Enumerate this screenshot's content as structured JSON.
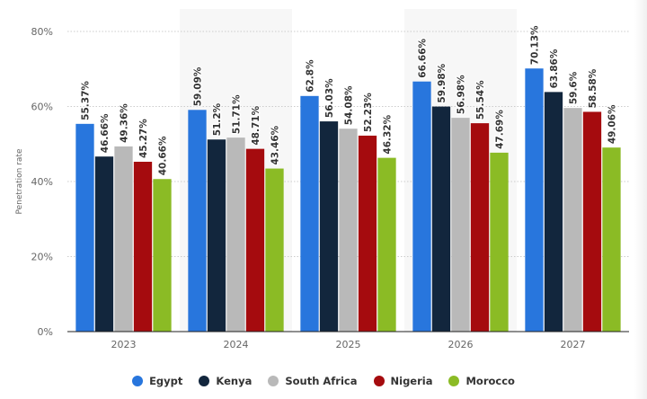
{
  "chart_data": {
    "type": "bar",
    "title": "",
    "xlabel": "",
    "ylabel": "Penetration rate",
    "ylim": [
      0,
      80
    ],
    "yticks": [
      "0%",
      "20%",
      "40%",
      "60%",
      "80%"
    ],
    "grid": true,
    "legend_placement": "bottom",
    "categories": [
      "2023",
      "2024",
      "2025",
      "2026",
      "2027"
    ],
    "series": [
      {
        "name": "Egypt",
        "color": "#2876dd",
        "values": [
          55.37,
          59.09,
          62.8,
          66.66,
          70.13
        ],
        "labels": [
          "55.37%",
          "59.09%",
          "62.8%",
          "66.66%",
          "70.13%"
        ]
      },
      {
        "name": "Kenya",
        "color": "#12263d",
        "values": [
          46.66,
          51.2,
          56.03,
          59.98,
          63.86
        ],
        "labels": [
          "46.66%",
          "51.2%",
          "56.03%",
          "59.98%",
          "63.86%"
        ]
      },
      {
        "name": "South Africa",
        "color": "#b9b9b9",
        "values": [
          49.36,
          51.71,
          54.08,
          56.98,
          59.6
        ],
        "labels": [
          "49.36%",
          "51.71%",
          "54.08%",
          "56.98%",
          "59.6%"
        ]
      },
      {
        "name": "Nigeria",
        "color": "#a50b0e",
        "values": [
          45.27,
          48.71,
          52.23,
          55.54,
          58.58
        ],
        "labels": [
          "45.27%",
          "48.71%",
          "52.23%",
          "55.54%",
          "58.58%"
        ]
      },
      {
        "name": "Morocco",
        "color": "#8bbb25",
        "values": [
          40.66,
          43.46,
          46.32,
          47.69,
          49.06
        ],
        "labels": [
          "40.66%",
          "43.46%",
          "46.32%",
          "47.69%",
          "49.06%"
        ]
      }
    ]
  }
}
